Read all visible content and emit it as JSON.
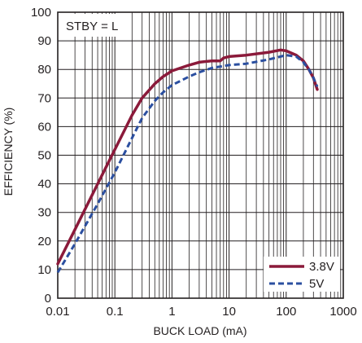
{
  "chart_data": {
    "type": "line",
    "x_scale": "log",
    "xlim": [
      0.01,
      1000
    ],
    "ylim": [
      0,
      100
    ],
    "xlabel": "BUCK LOAD (mA)",
    "ylabel": "EFFICIENCY (%)",
    "x_ticks": [
      "0.01",
      "0.1",
      "1",
      "10",
      "100",
      "1000"
    ],
    "y_ticks": [
      "0",
      "10",
      "20",
      "30",
      "40",
      "50",
      "60",
      "70",
      "80",
      "90",
      "100"
    ],
    "annotation": "STBY = L",
    "grid": true,
    "legend_position": "bottom-right",
    "series": [
      {
        "name": "3.8V",
        "color": "#8b1a3a",
        "style": "solid",
        "x": [
          0.01,
          0.02,
          0.05,
          0.1,
          0.2,
          0.3,
          0.5,
          0.7,
          1,
          2,
          3,
          5,
          7,
          8,
          10,
          20,
          50,
          80,
          100,
          150,
          200,
          250,
          300,
          350
        ],
        "y": [
          12,
          24,
          40,
          52,
          64,
          70,
          75,
          77.5,
          79.5,
          81.5,
          82.5,
          83,
          83,
          84,
          84.5,
          85,
          86,
          86.8,
          86.5,
          85,
          83,
          80,
          77,
          73
        ]
      },
      {
        "name": "5V",
        "color": "#2b4fa0",
        "style": "dashed",
        "x": [
          0.01,
          0.02,
          0.05,
          0.1,
          0.2,
          0.3,
          0.5,
          0.7,
          1,
          2,
          3,
          5,
          7,
          10,
          20,
          50,
          100,
          150,
          200,
          250,
          300,
          350
        ],
        "y": [
          9,
          19,
          33,
          44,
          56,
          63,
          69,
          72,
          74.5,
          77.5,
          79,
          80.5,
          81,
          81.5,
          82,
          83.5,
          85,
          84.5,
          82.5,
          80,
          77,
          74
        ]
      }
    ]
  }
}
